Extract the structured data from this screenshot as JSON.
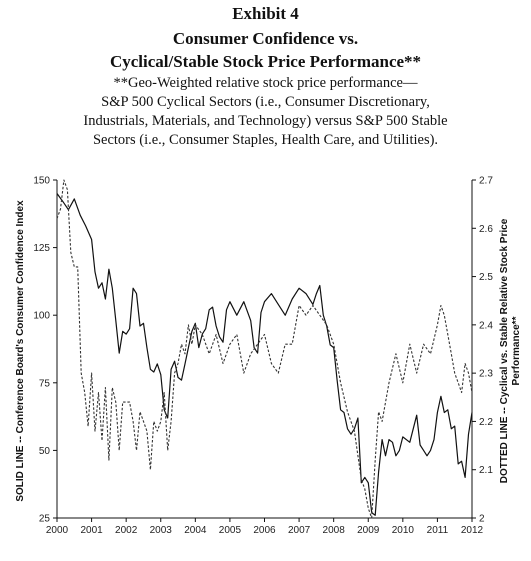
{
  "header": {
    "exhibit": "Exhibit 4",
    "title_line1": "Consumer Confidence vs.",
    "title_line2": "Cyclical/Stable Stock Price Performance**",
    "subtitle_line1": "**Geo-Weighted relative stock price performance—",
    "subtitle_line2": "S&P 500 Cyclical Sectors (i.e., Consumer Discretionary,",
    "subtitle_line3": "Industrials, Materials, and Technology) versus S&P 500 Stable",
    "subtitle_line4": "Sectors (i.e., Consumer Staples, Health Care, and Utilities)."
  },
  "chart_data": {
    "type": "line",
    "xlabel": "",
    "ylabel_left": "SOLID LINE -- Conference Board's Consumer Confidence Index",
    "ylabel_right_line1": "DOTTED LINE -- Cyclical vs. Stable Relative Stock Price",
    "ylabel_right_line2": "Performance**",
    "xlim": [
      2000,
      2012
    ],
    "ylim_left": [
      25,
      150
    ],
    "ylim_right": [
      2.0,
      2.7
    ],
    "x_ticks": [
      "2000",
      "2001",
      "2002",
      "2003",
      "2004",
      "2005",
      "2006",
      "2007",
      "2008",
      "2009",
      "2010",
      "2011",
      "2012"
    ],
    "y_ticks_left": [
      "25",
      "50",
      "75",
      "100",
      "125",
      "150"
    ],
    "y_ticks_right": [
      "2",
      "2.1",
      "2.2",
      "2.3",
      "2.4",
      "2.5",
      "2.6",
      "2.7"
    ],
    "grid": false,
    "colors": {
      "solid": "#111111",
      "dotted": "#333333"
    },
    "series": [
      {
        "style": "solid",
        "axis": "left",
        "x": [
          2000.0,
          2000.17,
          2000.33,
          2000.5,
          2000.67,
          2000.83,
          2001.0,
          2001.1,
          2001.2,
          2001.3,
          2001.4,
          2001.5,
          2001.6,
          2001.7,
          2001.8,
          2001.9,
          2002.0,
          2002.1,
          2002.2,
          2002.3,
          2002.4,
          2002.5,
          2002.6,
          2002.7,
          2002.8,
          2002.9,
          2003.0,
          2003.1,
          2003.2,
          2003.3,
          2003.4,
          2003.5,
          2003.6,
          2003.7,
          2003.8,
          2003.9,
          2004.0,
          2004.1,
          2004.2,
          2004.3,
          2004.4,
          2004.5,
          2004.6,
          2004.7,
          2004.8,
          2004.9,
          2005.0,
          2005.2,
          2005.4,
          2005.6,
          2005.7,
          2005.8,
          2005.9,
          2006.0,
          2006.2,
          2006.4,
          2006.6,
          2006.8,
          2007.0,
          2007.2,
          2007.4,
          2007.5,
          2007.6,
          2007.7,
          2007.8,
          2007.9,
          2008.0,
          2008.1,
          2008.2,
          2008.3,
          2008.4,
          2008.5,
          2008.6,
          2008.7,
          2008.8,
          2008.9,
          2009.0,
          2009.1,
          2009.2,
          2009.3,
          2009.4,
          2009.5,
          2009.6,
          2009.7,
          2009.8,
          2009.9,
          2010.0,
          2010.2,
          2010.4,
          2010.5,
          2010.6,
          2010.7,
          2010.8,
          2010.9,
          2011.0,
          2011.1,
          2011.2,
          2011.3,
          2011.4,
          2011.5,
          2011.6,
          2011.7,
          2011.8,
          2011.9,
          2012.0
        ],
        "values": [
          145,
          142,
          139,
          143,
          137,
          133,
          128,
          116,
          110,
          112,
          106,
          117,
          110,
          98,
          86,
          94,
          93,
          95,
          110,
          108,
          96,
          97,
          88,
          80,
          79,
          82,
          78,
          65,
          62,
          80,
          83,
          77,
          76,
          82,
          88,
          94,
          97,
          88,
          93,
          95,
          102,
          103,
          96,
          92,
          90,
          102,
          105,
          100,
          105,
          98,
          88,
          86,
          101,
          105,
          108,
          104,
          100,
          106,
          110,
          108,
          104,
          108,
          111,
          100,
          96,
          89,
          88,
          76,
          65,
          64,
          58,
          56,
          58,
          62,
          38,
          40,
          38,
          27,
          26,
          42,
          54,
          48,
          54,
          53,
          48,
          50,
          55,
          53,
          63,
          52,
          50,
          48,
          50,
          54,
          64,
          70,
          64,
          65,
          58,
          59,
          45,
          46,
          40,
          56,
          64
        ]
      },
      {
        "style": "dotted",
        "axis": "right",
        "x": [
          2000.0,
          2000.1,
          2000.2,
          2000.3,
          2000.4,
          2000.5,
          2000.6,
          2000.7,
          2000.8,
          2000.9,
          2001.0,
          2001.1,
          2001.2,
          2001.3,
          2001.4,
          2001.5,
          2001.6,
          2001.7,
          2001.8,
          2001.9,
          2002.0,
          2002.1,
          2002.2,
          2002.3,
          2002.4,
          2002.5,
          2002.6,
          2002.7,
          2002.8,
          2002.9,
          2003.0,
          2003.1,
          2003.2,
          2003.3,
          2003.4,
          2003.5,
          2003.6,
          2003.7,
          2003.8,
          2003.9,
          2004.0,
          2004.2,
          2004.4,
          2004.6,
          2004.8,
          2005.0,
          2005.2,
          2005.4,
          2005.6,
          2005.8,
          2006.0,
          2006.2,
          2006.4,
          2006.6,
          2006.8,
          2007.0,
          2007.2,
          2007.4,
          2007.6,
          2007.8,
          2008.0,
          2008.2,
          2008.4,
          2008.6,
          2008.8,
          2008.9,
          2009.0,
          2009.1,
          2009.2,
          2009.3,
          2009.4,
          2009.6,
          2009.8,
          2010.0,
          2010.2,
          2010.4,
          2010.6,
          2010.8,
          2011.0,
          2011.1,
          2011.2,
          2011.3,
          2011.4,
          2011.5,
          2011.6,
          2011.7,
          2011.8,
          2011.9,
          2012.0
        ],
        "values": [
          2.62,
          2.64,
          2.7,
          2.68,
          2.55,
          2.52,
          2.52,
          2.3,
          2.26,
          2.19,
          2.3,
          2.18,
          2.26,
          2.16,
          2.27,
          2.12,
          2.27,
          2.24,
          2.14,
          2.24,
          2.24,
          2.24,
          2.2,
          2.14,
          2.22,
          2.2,
          2.18,
          2.1,
          2.2,
          2.18,
          2.2,
          2.26,
          2.14,
          2.2,
          2.3,
          2.32,
          2.36,
          2.34,
          2.4,
          2.36,
          2.4,
          2.38,
          2.34,
          2.38,
          2.32,
          2.36,
          2.38,
          2.3,
          2.34,
          2.36,
          2.38,
          2.32,
          2.3,
          2.36,
          2.36,
          2.44,
          2.42,
          2.44,
          2.42,
          2.4,
          2.36,
          2.28,
          2.22,
          2.18,
          2.08,
          2.06,
          2.02,
          2.0,
          2.12,
          2.22,
          2.2,
          2.28,
          2.34,
          2.28,
          2.36,
          2.3,
          2.36,
          2.34,
          2.4,
          2.44,
          2.42,
          2.38,
          2.34,
          2.3,
          2.28,
          2.26,
          2.32,
          2.3,
          2.26
        ]
      }
    ]
  }
}
